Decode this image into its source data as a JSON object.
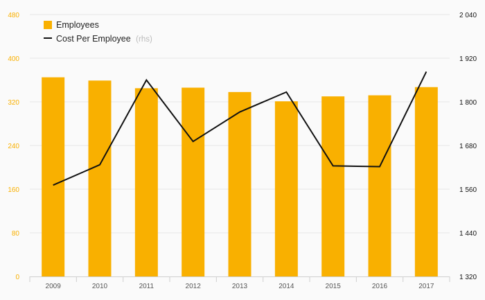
{
  "chart_data": {
    "type": "bar",
    "categories": [
      "2009",
      "2010",
      "2011",
      "2012",
      "2013",
      "2014",
      "2015",
      "2016",
      "2017"
    ],
    "series": [
      {
        "name": "Employees",
        "kind": "bar",
        "axis": "left",
        "color": "#F9B000",
        "values": [
          365,
          359,
          345,
          346,
          338,
          321,
          330,
          332,
          347
        ]
      },
      {
        "name": "Cost Per Employee",
        "name_suffix": "(rhs)",
        "kind": "line",
        "axis": "right",
        "color": "#111111",
        "values": [
          1571,
          1627,
          1860,
          1691,
          1772,
          1827,
          1624,
          1622,
          1883
        ]
      }
    ],
    "y_left": {
      "range": [
        0,
        480
      ],
      "ticks": [
        0,
        80,
        160,
        240,
        320,
        400,
        480
      ],
      "tick_labels": [
        "0",
        "80",
        "160",
        "240",
        "320",
        "400",
        "480"
      ],
      "color": "#F9B000"
    },
    "y_right": {
      "range": [
        1320,
        2040
      ],
      "ticks": [
        1320,
        1440,
        1560,
        1680,
        1800,
        1920,
        2040
      ],
      "tick_labels": [
        "1 320",
        "1 440",
        "1 560",
        "1 680",
        "1 800",
        "1 920",
        "2 040"
      ],
      "color": "#111111"
    },
    "grid": true,
    "legend_position": "top-left"
  }
}
